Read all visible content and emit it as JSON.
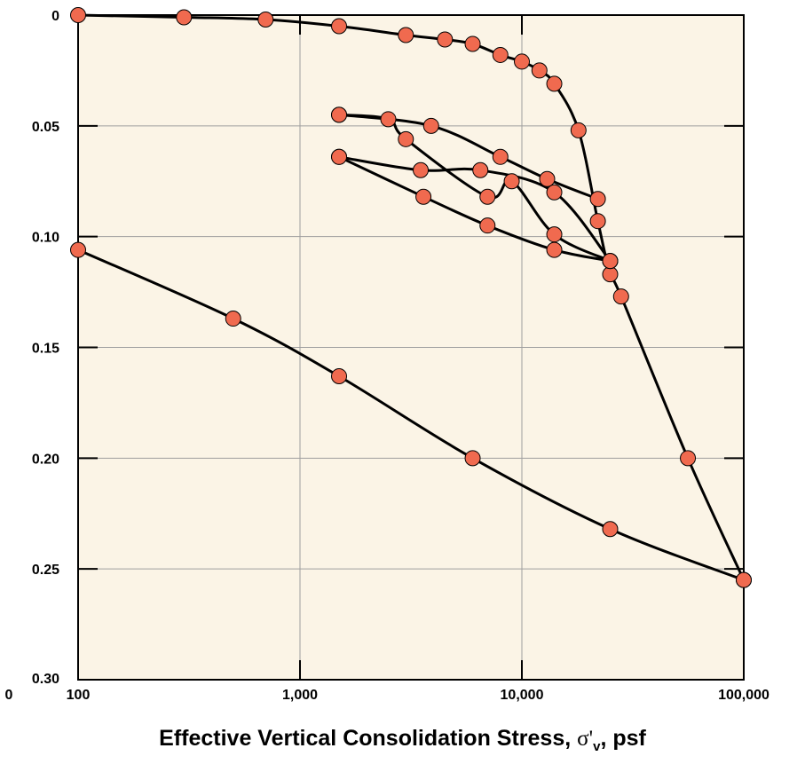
{
  "chart_data": {
    "type": "line",
    "title": "",
    "xlabel": {
      "text": "Effective Vertical Consolidation Stress, ",
      "symbol": "σ'",
      "subscript": "v",
      "unit": ", psf"
    },
    "ylabel": "",
    "x_scale": "log",
    "xlim": [
      100,
      100000
    ],
    "ylim": [
      0.3,
      0
    ],
    "y_inverted": true,
    "grid": true,
    "legend": "none",
    "x_ticks": [
      {
        "value": 100,
        "label": "100"
      },
      {
        "value": 1000,
        "label": "1,000"
      },
      {
        "value": 10000,
        "label": "10,000"
      },
      {
        "value": 100000,
        "label": "100,000"
      }
    ],
    "x_origin_label": "0",
    "y_ticks": [
      {
        "value": 0,
        "label": "0"
      },
      {
        "value": 0.05,
        "label": "0.05"
      },
      {
        "value": 0.1,
        "label": "0.10"
      },
      {
        "value": 0.15,
        "label": "0.15"
      },
      {
        "value": 0.2,
        "label": "0.20"
      },
      {
        "value": 0.25,
        "label": "0.25"
      },
      {
        "value": 0.3,
        "label": "0.30"
      }
    ],
    "colors": {
      "plot_bg": "#fbf4e6",
      "marker_fill": "#f06a4f",
      "line": "#000000",
      "grid": "#9e9e9e"
    },
    "series": [
      {
        "x": [
          100,
          300,
          700,
          1500,
          3000,
          4500,
          6000,
          8000,
          10000,
          12000,
          14000,
          18000,
          22000,
          25000,
          28000,
          56000,
          100000
        ],
        "y": [
          0.0,
          0.001,
          0.002,
          0.005,
          0.009,
          0.011,
          0.013,
          0.018,
          0.021,
          0.025,
          0.031,
          0.052,
          0.093,
          0.117,
          0.127,
          0.2,
          0.255
        ]
      },
      {
        "x": [
          100000,
          25000,
          6000,
          1500,
          500,
          100
        ],
        "y": [
          0.255,
          0.232,
          0.2,
          0.163,
          0.137,
          0.106
        ]
      },
      {
        "x": [
          25000,
          14000,
          7000,
          3600,
          1500
        ],
        "y": [
          0.111,
          0.106,
          0.095,
          0.082,
          0.064
        ]
      },
      {
        "x": [
          1500,
          3500,
          6500,
          14000,
          25000
        ],
        "y": [
          0.064,
          0.07,
          0.07,
          0.08,
          0.111
        ]
      },
      {
        "x": [
          22000,
          13000,
          8000,
          3900,
          1500
        ],
        "y": [
          0.083,
          0.074,
          0.064,
          0.05,
          0.045
        ]
      },
      {
        "x": [
          1500,
          2500,
          3000,
          7000,
          9000,
          14000,
          25000
        ],
        "y": [
          0.045,
          0.047,
          0.056,
          0.082,
          0.075,
          0.099,
          0.111
        ]
      }
    ]
  }
}
